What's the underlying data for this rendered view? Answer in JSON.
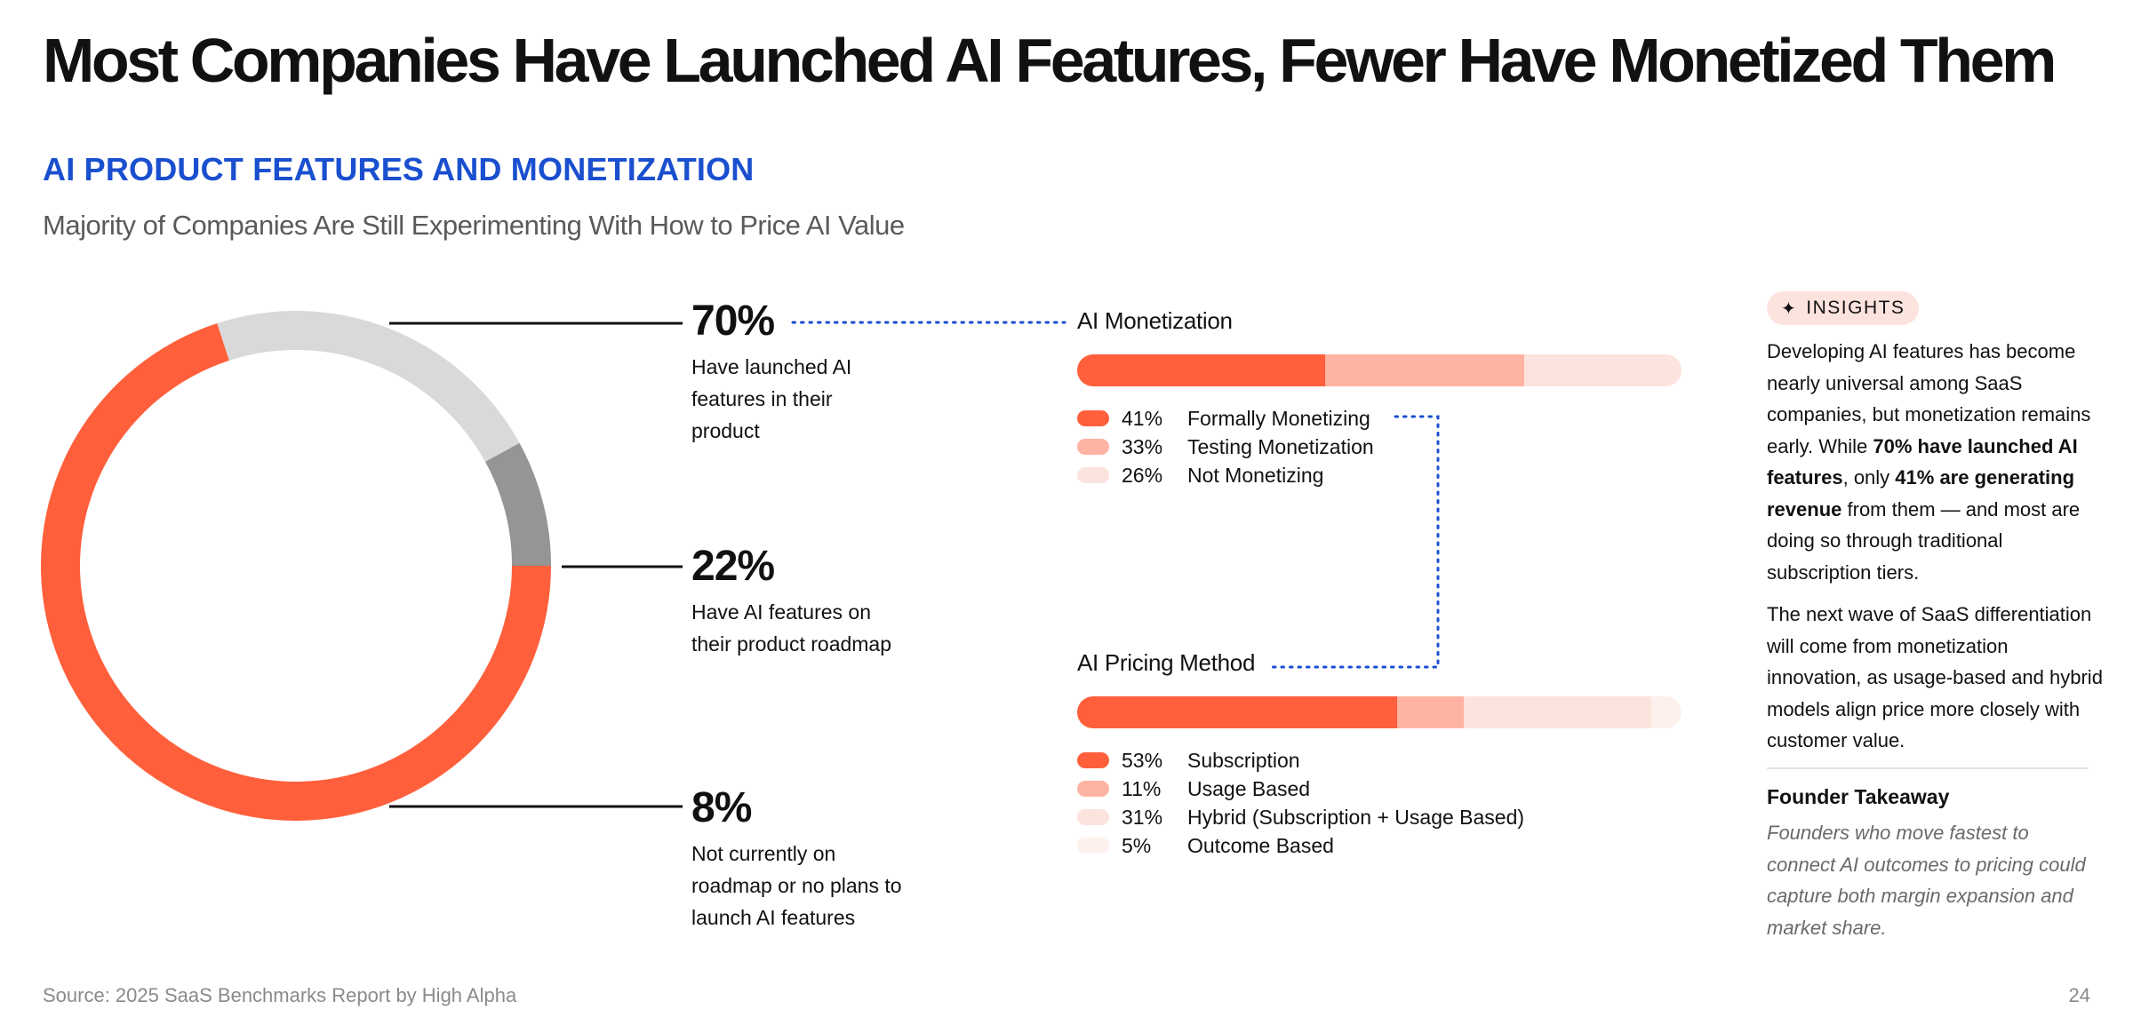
{
  "title": "Most Companies Have Launched AI Features, Fewer Have Monetized Them",
  "section_heading": "AI PRODUCT FEATURES AND MONETIZATION",
  "subtitle": "Majority of Companies Are Still Experimenting With How to Price AI Value",
  "chart_data": [
    {
      "type": "pie",
      "donut": true,
      "slices": [
        {
          "value": 70,
          "label": "70%",
          "description": [
            "Have launched AI",
            "features in their",
            "product"
          ],
          "color": "#ff5f3b"
        },
        {
          "value": 22,
          "label": "22%",
          "description": [
            "Have AI features on",
            "their product roadmap"
          ],
          "color": "#d9d9d9"
        },
        {
          "value": 8,
          "label": "8%",
          "description": [
            "Not currently on",
            "roadmap or no plans to",
            "launch AI features"
          ],
          "color": "#959595"
        }
      ]
    },
    {
      "type": "bar",
      "stacked": true,
      "orientation": "horizontal",
      "title": "AI Monetization",
      "series": [
        {
          "name": "Formally Monetizing",
          "value": 41,
          "label": "41%",
          "color": "#ff5f3b"
        },
        {
          "name": "Testing Monetization",
          "value": 33,
          "label": "33%",
          "color": "#ffb3a2"
        },
        {
          "name": "Not Monetizing",
          "value": 26,
          "label": "26%",
          "color": "#fde3dd"
        }
      ]
    },
    {
      "type": "bar",
      "stacked": true,
      "orientation": "horizontal",
      "title": "AI Pricing Method",
      "series": [
        {
          "name": "Subscription",
          "value": 53,
          "label": "53%",
          "color": "#ff5f3b"
        },
        {
          "name": "Usage Based",
          "value": 11,
          "label": "11%",
          "color": "#ffb3a2"
        },
        {
          "name": "Hybrid (Subscription + Usage Based)",
          "value": 31,
          "label": "31%",
          "color": "#fde3dd"
        },
        {
          "name": "Outcome Based",
          "value": 5,
          "label": "5%",
          "color": "#fdf1ee"
        }
      ]
    }
  ],
  "insights": {
    "badge_icon": "sparkle-icon",
    "badge": "INSIGHTS",
    "para1": {
      "t1": "Developing AI features has become nearly universal among SaaS companies, but monetization remains early. While ",
      "b1": "70% have launched AI features",
      "t2": ", only ",
      "b2": "41% are generating revenue",
      "t3": " from them — and most are doing so through traditional subscription tiers."
    },
    "para2": "The next wave of SaaS differentiation will come from monetization innovation, as usage-based and hybrid models align price more closely with customer value.",
    "takeaway_title": "Founder Takeaway",
    "takeaway_text": "Founders who move fastest to connect AI outcomes to pricing could capture both margin expansion and market share."
  },
  "footer": {
    "source": "Source: 2025 SaaS Benchmarks Report by High Alpha",
    "page": "24"
  },
  "colors": {
    "accent": "#ff5f3b",
    "heading_blue": "#1a4fcf",
    "connector_blue": "#1a4fcf"
  }
}
